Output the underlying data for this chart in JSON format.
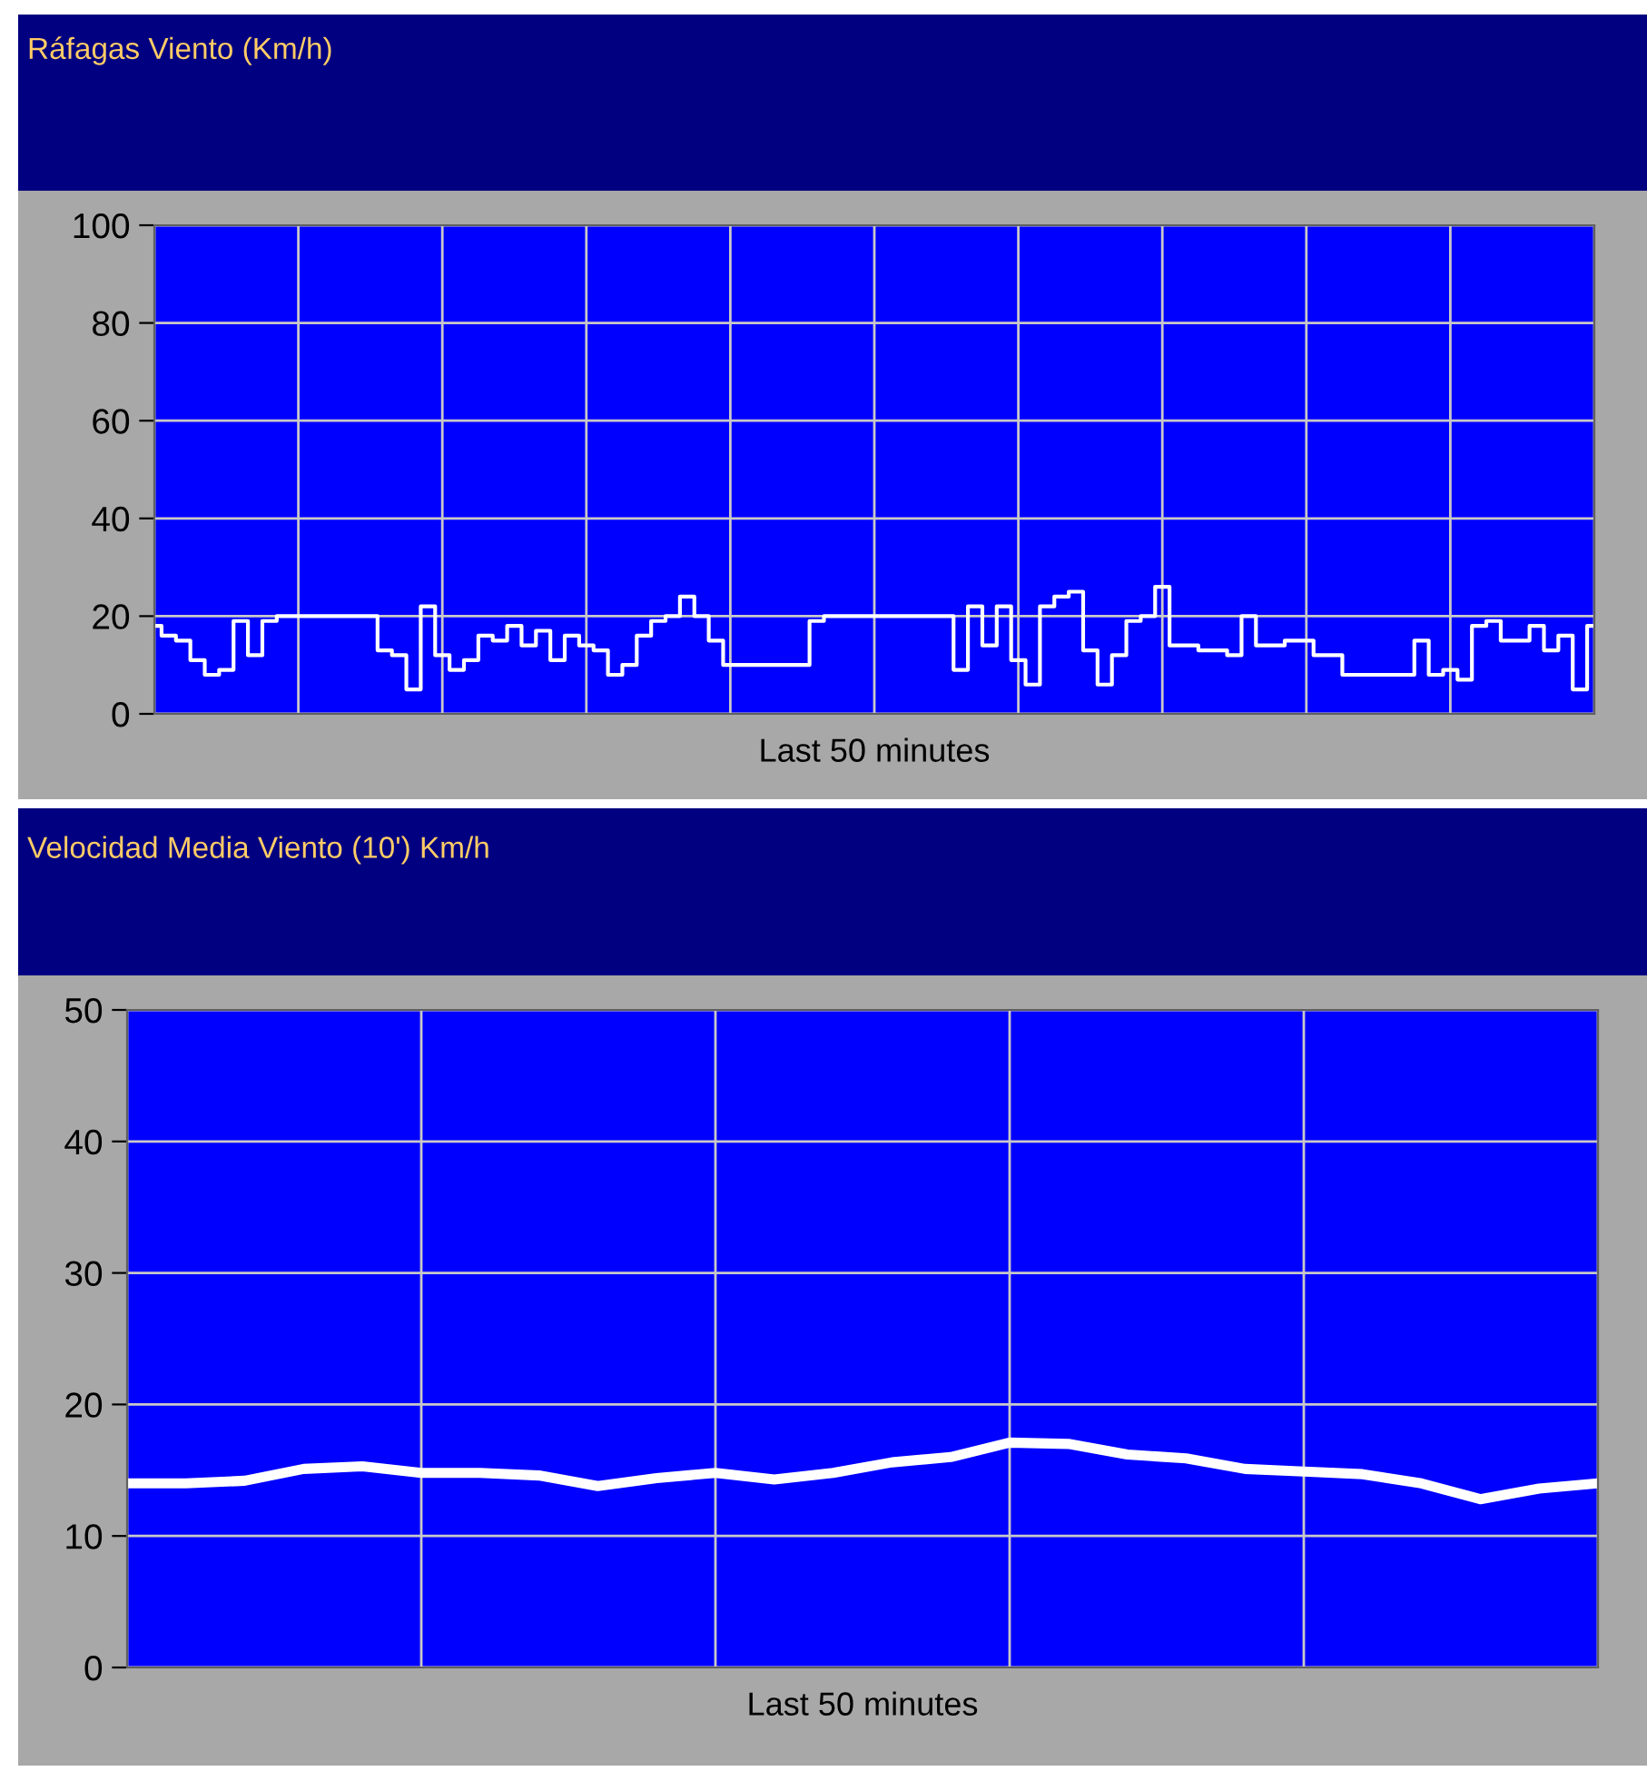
{
  "chart_data": [
    {
      "type": "step",
      "title": "Ráfagas Viento (Km/h)",
      "xlabel": "Last 50 minutes",
      "categories": [
        null,
        null,
        null,
        null,
        null,
        null,
        null,
        null,
        null,
        null,
        null,
        null,
        null,
        null,
        null,
        null,
        null,
        null,
        null,
        null,
        null,
        null,
        null,
        null,
        null,
        null,
        null,
        null,
        null,
        null,
        null,
        null,
        null,
        null,
        null,
        null,
        null,
        null,
        null,
        null,
        null,
        null,
        null,
        null,
        null,
        null,
        null,
        null,
        null,
        null,
        null,
        null,
        null,
        null,
        null,
        null,
        null,
        null,
        null,
        null,
        null,
        null,
        null,
        null,
        null,
        null,
        null,
        null,
        null,
        null,
        null,
        null,
        null,
        null,
        null,
        null,
        null,
        null,
        null,
        null,
        null,
        null,
        null,
        null,
        null,
        null,
        null,
        null,
        null,
        null,
        null,
        null,
        null,
        null,
        null,
        null,
        null,
        null,
        null,
        null,
        null
      ],
      "ylim": [
        0,
        100
      ],
      "yticks": [
        0,
        20,
        40,
        60,
        80,
        100
      ],
      "grid": true,
      "tick_labels": "y",
      "values": [
        18,
        16,
        15,
        11,
        8,
        9,
        19,
        12,
        19,
        20,
        20,
        20,
        20,
        20,
        20,
        20,
        13,
        12,
        5,
        22,
        12,
        9,
        11,
        16,
        15,
        18,
        14,
        17,
        11,
        16,
        14,
        13,
        8,
        10,
        16,
        19,
        20,
        24,
        20,
        15,
        10,
        10,
        10,
        10,
        10,
        10,
        19,
        20,
        20,
        20,
        20,
        20,
        20,
        20,
        20,
        20,
        9,
        22,
        14,
        22,
        11,
        6,
        22,
        24,
        25,
        13,
        6,
        12,
        19,
        20,
        26,
        14,
        14,
        13,
        13,
        12,
        20,
        14,
        14,
        15,
        15,
        12,
        12,
        8,
        8,
        8,
        8,
        8,
        15,
        8,
        9,
        7,
        18,
        19,
        15,
        15,
        18,
        13,
        16,
        5,
        18
      ],
      "color": "#ffffff"
    },
    {
      "type": "line",
      "title": "Velocidad Media Viento (10') Km/h",
      "xlabel": "Last 50 minutes",
      "categories": [
        null,
        null,
        null,
        null,
        null,
        null,
        null,
        null,
        null,
        null,
        null,
        null,
        null,
        null,
        null,
        null,
        null,
        null,
        null,
        null,
        null,
        null,
        null,
        null,
        null,
        null
      ],
      "ylim": [
        0,
        50
      ],
      "yticks": [
        0,
        10,
        20,
        30,
        40,
        50
      ],
      "grid": true,
      "tick_labels": "y",
      "values": [
        14,
        14.0,
        14.2,
        15.1,
        15.3,
        14.8,
        14.8,
        14.6,
        13.8,
        14.4,
        14.8,
        14.3,
        14.8,
        15.6,
        16.0,
        17.1,
        17.0,
        16.2,
        15.9,
        15.1,
        14.9,
        14.7,
        14.0,
        12.8,
        13.6,
        14
      ],
      "color": "#ffffff"
    }
  ]
}
